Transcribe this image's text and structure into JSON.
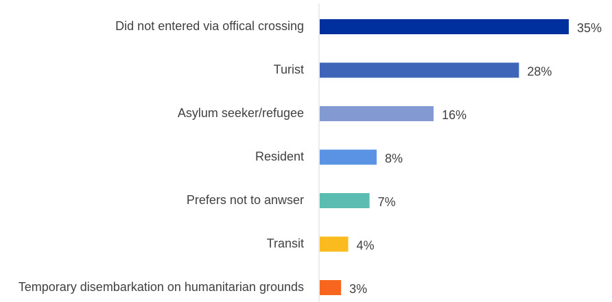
{
  "chart_data": {
    "type": "bar",
    "orientation": "horizontal",
    "categories": [
      "Did not entered via offical crossing",
      "Turist",
      "Asylum seeker/refugee",
      "Resident",
      "Prefers not to anwser",
      "Transit",
      "Temporary disembarkation on humanitarian grounds"
    ],
    "values": [
      35,
      28,
      16,
      8,
      7,
      4,
      3
    ],
    "value_labels": [
      "35%",
      "28%",
      "16%",
      "8%",
      "7%",
      "4%",
      "3%"
    ],
    "colors": [
      "#002f9e",
      "#3f65b9",
      "#8299d2",
      "#5b93e4",
      "#5bbcb2",
      "#fbbb1e",
      "#f7651e"
    ],
    "unit": "%",
    "xlim": [
      0,
      35
    ],
    "grid": false,
    "legend": "none",
    "title": "",
    "xlabel": "",
    "ylabel": ""
  }
}
